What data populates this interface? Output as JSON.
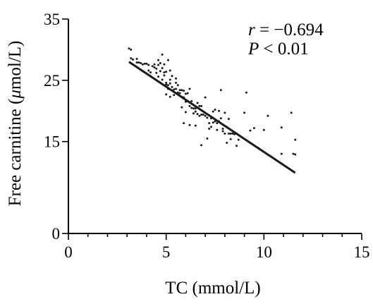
{
  "chart_data": {
    "type": "scatter",
    "title": "",
    "xlabel": "TC (mmol/L)",
    "ylabel_parts": [
      "Free carnitine (",
      "μ",
      "mol/L)"
    ],
    "xlim": [
      0,
      15
    ],
    "ylim": [
      0,
      35
    ],
    "x_ticks": [
      0,
      5,
      10,
      15
    ],
    "x_minor_ticks": [
      1,
      2,
      3,
      4,
      6,
      7,
      8,
      9,
      11,
      12,
      13,
      14
    ],
    "y_ticks": [
      0,
      15,
      25,
      35
    ],
    "grid": false,
    "annotations": {
      "r_symbol": "r",
      "r_value": " = −0.694",
      "p_symbol": "P",
      "p_value": " < 0.01"
    },
    "regression_line": {
      "x": [
        3.1,
        11.6
      ],
      "y": [
        28.0,
        9.9
      ]
    },
    "points": [
      [
        3.1,
        30.2
      ],
      [
        3.2,
        30.0
      ],
      [
        3.2,
        28.6
      ],
      [
        3.3,
        28.4
      ],
      [
        3.5,
        28.5
      ],
      [
        3.5,
        27.9
      ],
      [
        3.6,
        27.9
      ],
      [
        3.7,
        27.8
      ],
      [
        3.8,
        27.6
      ],
      [
        3.9,
        27.7
      ],
      [
        4.0,
        27.7
      ],
      [
        4.1,
        27.5
      ],
      [
        4.1,
        26.6
      ],
      [
        4.2,
        26.3
      ],
      [
        4.2,
        25.7
      ],
      [
        4.3,
        27.3
      ],
      [
        4.4,
        27.1
      ],
      [
        4.4,
        27.6
      ],
      [
        4.5,
        26.9
      ],
      [
        4.5,
        26.2
      ],
      [
        4.6,
        28.3
      ],
      [
        4.6,
        27.5
      ],
      [
        4.6,
        25.6
      ],
      [
        4.7,
        26.5
      ],
      [
        4.7,
        27.8
      ],
      [
        4.8,
        29.2
      ],
      [
        4.8,
        27.0
      ],
      [
        4.8,
        25.1
      ],
      [
        4.9,
        27.6
      ],
      [
        4.9,
        26.3
      ],
      [
        5.0,
        26.4
      ],
      [
        5.0,
        24.6
      ],
      [
        5.0,
        24.3
      ],
      [
        5.1,
        24.2
      ],
      [
        5.1,
        23.6
      ],
      [
        5.1,
        28.3
      ],
      [
        5.2,
        26.6
      ],
      [
        5.2,
        25.1
      ],
      [
        5.2,
        24.5
      ],
      [
        5.3,
        23.9
      ],
      [
        5.3,
        25.7
      ],
      [
        5.4,
        22.6
      ],
      [
        5.4,
        23.5
      ],
      [
        5.5,
        23.6
      ],
      [
        5.5,
        25.3
      ],
      [
        5.5,
        24.6
      ],
      [
        5.6,
        23.0
      ],
      [
        5.6,
        24.2
      ],
      [
        5.7,
        22.9
      ],
      [
        5.7,
        23.4
      ],
      [
        5.8,
        23.4
      ],
      [
        5.8,
        22.3
      ],
      [
        5.9,
        22.2
      ],
      [
        5.9,
        23.3
      ],
      [
        6.0,
        22.8
      ],
      [
        6.0,
        21.8
      ],
      [
        6.0,
        21.5
      ],
      [
        6.1,
        21.6
      ],
      [
        6.1,
        22.9
      ],
      [
        6.2,
        23.6
      ],
      [
        6.2,
        21.4
      ],
      [
        6.2,
        20.8
      ],
      [
        6.3,
        21.6
      ],
      [
        6.3,
        20.5
      ],
      [
        6.4,
        20.4
      ],
      [
        6.4,
        19.6
      ],
      [
        6.5,
        19.9
      ],
      [
        6.5,
        20.4
      ],
      [
        6.6,
        19.5
      ],
      [
        6.6,
        21.3
      ],
      [
        6.7,
        19.2
      ],
      [
        6.7,
        20.8
      ],
      [
        6.8,
        19.4
      ],
      [
        6.8,
        20.8
      ],
      [
        6.8,
        14.4
      ],
      [
        6.9,
        19.4
      ],
      [
        7.0,
        19.2
      ],
      [
        7.0,
        22.2
      ],
      [
        7.1,
        18.9
      ],
      [
        7.1,
        15.5
      ],
      [
        7.2,
        18.0
      ],
      [
        7.2,
        17.1
      ],
      [
        7.3,
        17.4
      ],
      [
        7.3,
        18.8
      ],
      [
        7.4,
        19.9
      ],
      [
        7.4,
        18.1
      ],
      [
        7.5,
        18.3
      ],
      [
        7.5,
        20.2
      ],
      [
        7.6,
        18.0
      ],
      [
        7.6,
        16.9
      ],
      [
        7.7,
        18.3
      ],
      [
        7.7,
        20.0
      ],
      [
        7.8,
        23.4
      ],
      [
        7.8,
        18.8
      ],
      [
        7.9,
        17.1
      ],
      [
        7.9,
        16.7
      ],
      [
        8.0,
        16.3
      ],
      [
        8.0,
        19.7
      ],
      [
        8.1,
        17.4
      ],
      [
        8.1,
        14.8
      ],
      [
        8.2,
        16.3
      ],
      [
        8.3,
        16.3
      ],
      [
        8.3,
        15.4
      ],
      [
        8.4,
        16.3
      ],
      [
        8.5,
        16.2
      ],
      [
        8.6,
        16.3
      ],
      [
        8.7,
        15.3
      ],
      [
        9.0,
        19.7
      ],
      [
        9.1,
        23.0
      ],
      [
        9.3,
        16.8
      ],
      [
        9.5,
        17.2
      ],
      [
        9.7,
        14.0
      ],
      [
        10.0,
        16.9
      ],
      [
        10.2,
        19.2
      ],
      [
        10.9,
        17.3
      ],
      [
        10.9,
        13.0
      ],
      [
        11.4,
        19.7
      ],
      [
        11.5,
        13.0
      ],
      [
        11.6,
        12.9
      ],
      [
        11.6,
        15.3
      ],
      [
        6.0,
        19.8
      ],
      [
        5.9,
        18.0
      ],
      [
        4.9,
        25.8
      ],
      [
        6.2,
        17.7
      ],
      [
        8.6,
        14.3
      ],
      [
        5.8,
        20.6
      ],
      [
        6.5,
        17.6
      ],
      [
        8.2,
        18.7
      ],
      [
        5.2,
        22.3
      ],
      [
        5.0,
        22.7
      ]
    ]
  }
}
